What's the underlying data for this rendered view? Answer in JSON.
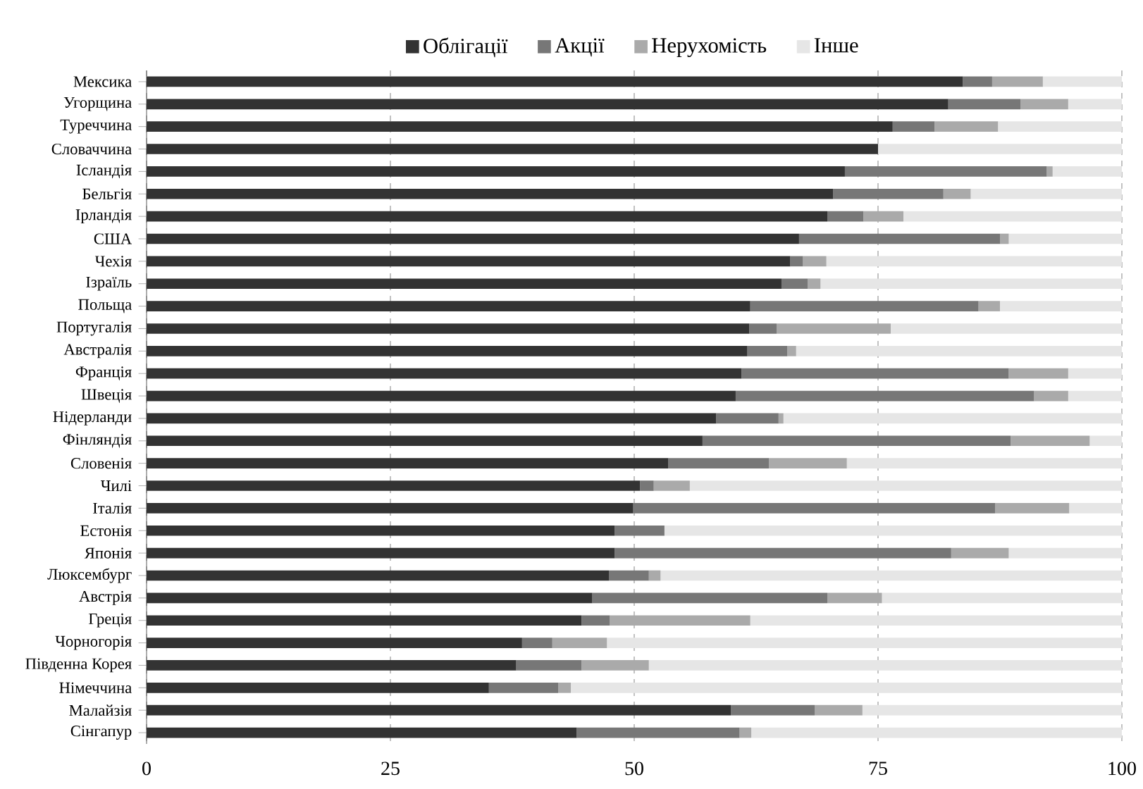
{
  "chart_data": {
    "type": "bar",
    "orientation": "horizontal",
    "stacked": true,
    "categories": [
      "Мексика",
      "Угорщина",
      "Туреччина",
      "Словаччина",
      "Ісландія",
      "Бельгія",
      "Ірландія",
      "США",
      "Чехія",
      "Ізраїль",
      "Польща",
      "Португалія",
      "Австралія",
      "Франція",
      "Швеція",
      "Нідерланди",
      "Фінляндія",
      "Словенія",
      "Чилі",
      "Італія",
      "Естонія",
      "Японія",
      "Люксембург",
      "Австрія",
      "Греція",
      "Чорногорія",
      "Південна Корея",
      "Німеччина",
      "Малайзія",
      "Сінгапур"
    ],
    "series": [
      {
        "name": "Облігації",
        "color": "#333333",
        "values": [
          83.7,
          82.2,
          76.5,
          75.0,
          71.6,
          70.4,
          69.8,
          66.9,
          66.0,
          65.1,
          61.9,
          61.8,
          61.6,
          61.0,
          60.4,
          58.4,
          57.0,
          53.5,
          50.6,
          49.9,
          48.0,
          48.0,
          47.4,
          45.7,
          44.6,
          38.5,
          37.9,
          35.1,
          59.9,
          44.1
        ]
      },
      {
        "name": "Акції",
        "color": "#777777",
        "values": [
          3.0,
          7.4,
          4.3,
          0,
          20.7,
          11.3,
          3.7,
          20.6,
          1.3,
          2.7,
          23.4,
          2.8,
          4.1,
          27.4,
          30.6,
          6.4,
          31.6,
          10.3,
          1.4,
          37.1,
          5.1,
          34.5,
          4.1,
          24.1,
          2.9,
          3.1,
          6.7,
          7.1,
          8.6,
          16.7
        ]
      },
      {
        "name": "Нерухомість",
        "color": "#aaaaaa",
        "values": [
          5.2,
          4.9,
          6.5,
          0,
          0.6,
          2.8,
          4.1,
          0.9,
          2.4,
          1.3,
          2.2,
          11.7,
          0.9,
          6.1,
          3.5,
          0.5,
          8.1,
          8.0,
          3.7,
          7.6,
          0,
          5.9,
          1.2,
          5.6,
          14.4,
          5.6,
          6.9,
          1.3,
          4.9,
          1.2
        ]
      },
      {
        "name": "Інше",
        "color": "#e6e6e6",
        "values": [
          8.1,
          5.5,
          12.7,
          25.0,
          7.1,
          15.5,
          22.4,
          11.6,
          30.3,
          30.9,
          12.5,
          23.7,
          33.4,
          5.5,
          5.5,
          34.7,
          3.3,
          28.2,
          44.3,
          5.4,
          46.9,
          11.6,
          47.3,
          24.6,
          38.1,
          52.8,
          48.5,
          56.5,
          26.6,
          38.0
        ]
      }
    ],
    "xlim": [
      0,
      100
    ],
    "xticks": [
      0,
      25,
      50,
      75,
      100
    ],
    "grid": "x",
    "legend": "top"
  }
}
